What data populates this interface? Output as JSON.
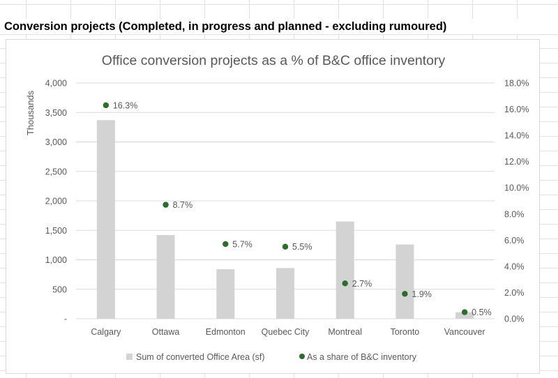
{
  "sheet": {
    "header_text": "Conversion projects (Completed, in progress and planned - excluding rumoured)"
  },
  "colors": {
    "bar": "#d3d3d3",
    "marker": "#2e6b2e",
    "axis_text": "#595959",
    "gridline": "#d9d9d9"
  },
  "chart_data": {
    "type": "bar",
    "title": "Office conversion projects as a % of B&C office inventory",
    "ylabel": "Thousands",
    "categories": [
      "Calgary",
      "Ottawa",
      "Edmonton",
      "Quebec City",
      "Montreal",
      "Toronto",
      "Vancouver"
    ],
    "series": [
      {
        "name": "Sum of converted Office Area (sf)",
        "kind": "bar",
        "axis": "left",
        "values": [
          3370,
          1420,
          840,
          860,
          1650,
          1260,
          110
        ]
      },
      {
        "name": "As a share of B&C inventory",
        "kind": "marker",
        "axis": "right",
        "values": [
          0.163,
          0.087,
          0.057,
          0.055,
          0.027,
          0.019,
          0.005
        ],
        "labels": [
          "16.3%",
          "8.7%",
          "5.7%",
          "5.5%",
          "2.7%",
          "1.9%",
          "0.5%"
        ]
      }
    ],
    "ylim": [
      0,
      4000
    ],
    "y2lim": [
      0,
      0.18
    ],
    "yticks": [
      "-",
      "500",
      "1,000",
      "1,500",
      "2,000",
      "2,500",
      "3,000",
      "3,500",
      "4,000"
    ],
    "y2ticks": [
      "0.0%",
      "2.0%",
      "4.0%",
      "6.0%",
      "8.0%",
      "10.0%",
      "12.0%",
      "14.0%",
      "16.0%",
      "18.0%"
    ],
    "grid": true,
    "legend_position": "bottom"
  }
}
